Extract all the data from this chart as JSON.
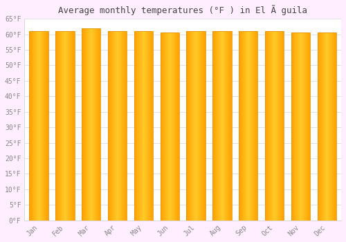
{
  "title": "Average monthly temperatures (°F ) in El Ã guila",
  "months": [
    "Jan",
    "Feb",
    "Mar",
    "Apr",
    "May",
    "Jun",
    "Jul",
    "Aug",
    "Sep",
    "Oct",
    "Nov",
    "Dec"
  ],
  "values": [
    61.0,
    61.0,
    62.0,
    61.0,
    61.0,
    60.5,
    61.0,
    61.0,
    61.0,
    61.0,
    60.5,
    60.5
  ],
  "ylim": [
    0,
    65
  ],
  "yticks": [
    0,
    5,
    10,
    15,
    20,
    25,
    30,
    35,
    40,
    45,
    50,
    55,
    60,
    65
  ],
  "bar_color_center": "#FFCA28",
  "bar_color_edge": "#FFA000",
  "bar_border_color": "#E6940A",
  "background_color": "#FFEEFF",
  "plot_bg_color": "#FFFFFF",
  "grid_color": "#E0E0E8",
  "title_fontsize": 9,
  "tick_fontsize": 7,
  "title_color": "#444444",
  "tick_color": "#888888",
  "font_family": "monospace",
  "bar_width": 0.72
}
